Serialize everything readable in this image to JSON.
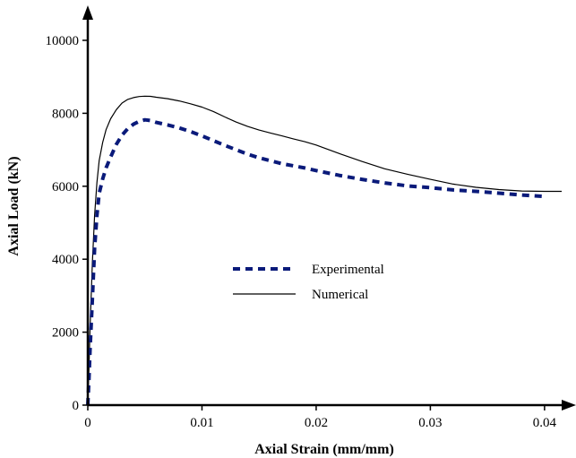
{
  "chart_data": {
    "type": "line",
    "xlabel": "Axial Strain (mm/mm)",
    "ylabel": "Axial Load (kN)",
    "xlim": [
      0,
      0.0415
    ],
    "ylim": [
      0,
      10000
    ],
    "x_ticks": [
      0,
      0.01,
      0.02,
      0.03,
      0.04
    ],
    "y_ticks": [
      0,
      2000,
      4000,
      6000,
      8000,
      10000
    ],
    "x_tick_labels": [
      "0",
      "0.01",
      "0.02",
      "0.03",
      "0.04"
    ],
    "y_tick_labels": [
      "0",
      "2000",
      "4000",
      "6000",
      "8000",
      "10000"
    ],
    "grid": false,
    "legend_position": "center",
    "series": [
      {
        "name": "Experimental",
        "color": "#0a1a7a",
        "style": "dashed",
        "x": [
          0,
          0.0001,
          0.0002,
          0.0004,
          0.0006,
          0.0008,
          0.001,
          0.0013,
          0.0016,
          0.002,
          0.0025,
          0.003,
          0.0035,
          0.004,
          0.0045,
          0.005,
          0.0055,
          0.006,
          0.007,
          0.008,
          0.009,
          0.01,
          0.011,
          0.012,
          0.013,
          0.014,
          0.015,
          0.016,
          0.017,
          0.018,
          0.019,
          0.02,
          0.022,
          0.024,
          0.026,
          0.028,
          0.03,
          0.032,
          0.034,
          0.036,
          0.038,
          0.04
        ],
        "y": [
          0,
          700,
          1500,
          2900,
          4300,
          5200,
          5800,
          6200,
          6500,
          6800,
          7150,
          7400,
          7580,
          7700,
          7780,
          7820,
          7800,
          7750,
          7680,
          7600,
          7500,
          7380,
          7250,
          7120,
          7000,
          6880,
          6780,
          6700,
          6620,
          6560,
          6500,
          6430,
          6300,
          6190,
          6090,
          6010,
          5960,
          5900,
          5860,
          5810,
          5760,
          5720
        ]
      },
      {
        "name": "Numerical",
        "color": "#000000",
        "style": "solid",
        "x": [
          0,
          0.0001,
          0.0002,
          0.0004,
          0.0006,
          0.0008,
          0.001,
          0.0013,
          0.0016,
          0.002,
          0.0025,
          0.003,
          0.0035,
          0.004,
          0.0045,
          0.005,
          0.0055,
          0.006,
          0.007,
          0.008,
          0.009,
          0.01,
          0.011,
          0.012,
          0.013,
          0.014,
          0.015,
          0.016,
          0.017,
          0.018,
          0.019,
          0.02,
          0.022,
          0.024,
          0.026,
          0.028,
          0.03,
          0.032,
          0.034,
          0.036,
          0.038,
          0.04,
          0.0415
        ],
        "y": [
          0,
          1000,
          2100,
          3900,
          5200,
          6100,
          6700,
          7200,
          7550,
          7850,
          8100,
          8280,
          8380,
          8430,
          8460,
          8470,
          8465,
          8440,
          8400,
          8340,
          8260,
          8170,
          8050,
          7900,
          7760,
          7640,
          7540,
          7460,
          7380,
          7300,
          7220,
          7130,
          6900,
          6680,
          6480,
          6330,
          6190,
          6060,
          5970,
          5910,
          5870,
          5860,
          5860
        ]
      }
    ]
  }
}
